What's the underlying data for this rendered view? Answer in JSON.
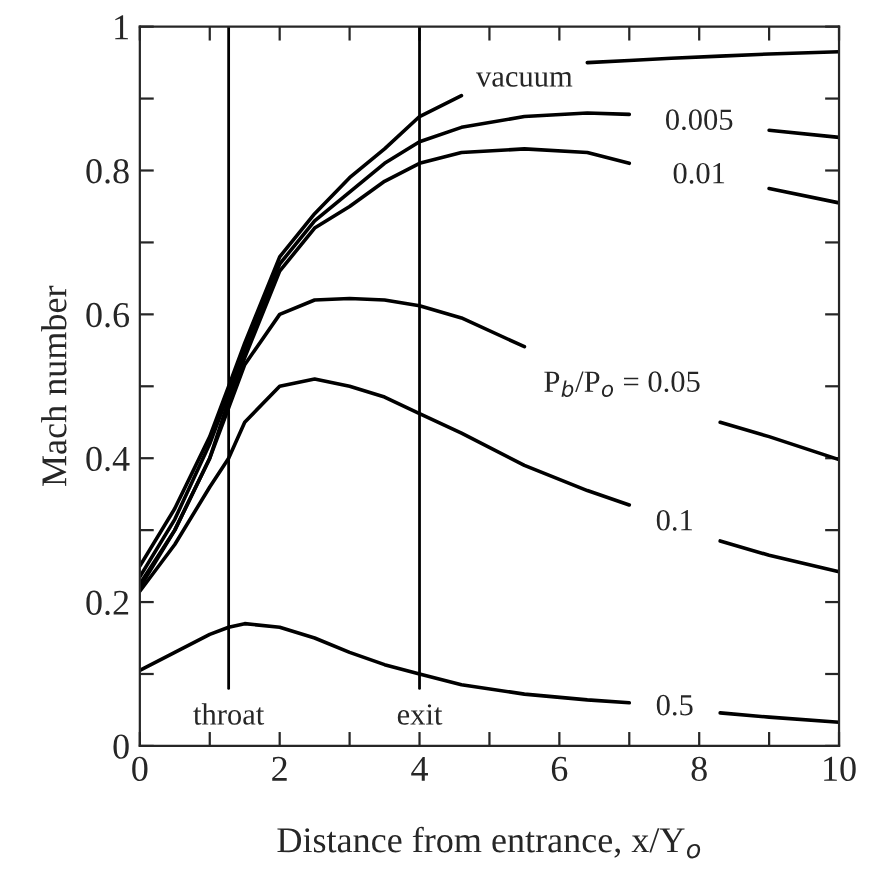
{
  "chart_data": {
    "type": "line",
    "xlabel": "Distance from entrance, x/Y$_{o}$",
    "ylabel": "Mach number",
    "x": [
      0,
      0.5,
      1,
      1.27,
      1.5,
      2,
      2.5,
      3,
      3.5,
      4,
      4.6,
      5.5,
      6.4,
      7,
      7.6,
      8.3,
      9,
      10
    ],
    "series": [
      {
        "name": "vacuum",
        "color": "#000000",
        "values": [
          0.25,
          0.33,
          0.43,
          0.5,
          0.56,
          0.68,
          0.74,
          0.79,
          0.83,
          0.875,
          0.904,
          null,
          0.95,
          0.953,
          0.956,
          0.959,
          0.962,
          0.965
        ]
      },
      {
        "name": "0.005",
        "color": "#000000",
        "values": [
          0.235,
          0.315,
          0.42,
          0.49,
          0.55,
          0.67,
          0.73,
          0.77,
          0.81,
          0.84,
          0.86,
          0.875,
          0.88,
          0.878,
          null,
          null,
          0.856,
          0.846
        ]
      },
      {
        "name": "0.01",
        "color": "#000000",
        "values": [
          0.22,
          0.3,
          0.4,
          0.48,
          0.54,
          0.66,
          0.72,
          0.75,
          0.785,
          0.81,
          0.825,
          0.83,
          0.825,
          0.81,
          null,
          null,
          0.775,
          0.755
        ]
      },
      {
        "name": "P$_{b}$/P$_{o}$ = 0.05",
        "color": "#000000",
        "values": [
          0.225,
          0.3,
          0.4,
          0.47,
          0.53,
          0.6,
          0.62,
          0.622,
          0.62,
          0.612,
          0.595,
          0.555,
          null,
          null,
          null,
          0.45,
          0.43,
          0.398
        ]
      },
      {
        "name": "0.1",
        "color": "#000000",
        "values": [
          0.215,
          0.28,
          0.36,
          0.4,
          0.45,
          0.5,
          0.51,
          0.5,
          0.485,
          0.462,
          0.435,
          0.39,
          0.355,
          0.335,
          null,
          0.285,
          0.265,
          0.242
        ]
      },
      {
        "name": "0.5",
        "color": "#000000",
        "values": [
          0.105,
          0.13,
          0.155,
          0.165,
          0.17,
          0.165,
          0.15,
          0.13,
          0.113,
          0.1,
          0.085,
          0.072,
          0.064,
          0.06,
          null,
          0.046,
          0.04,
          0.033
        ]
      }
    ],
    "xlim": [
      0,
      10
    ],
    "ylim": [
      0,
      1
    ],
    "xticks": [
      0,
      {
        "value": 1,
        "label": null
      },
      2,
      {
        "value": 3,
        "label": null
      },
      4,
      {
        "value": 5,
        "label": null
      },
      6,
      {
        "value": 7,
        "label": null
      },
      8,
      {
        "value": 9,
        "label": null
      },
      10
    ],
    "yticks": [
      0,
      {
        "value": 0.1,
        "label": null
      },
      0.2,
      {
        "value": 0.3,
        "label": null
      },
      0.4,
      {
        "value": 0.5,
        "label": null
      },
      0.6,
      {
        "value": 0.7,
        "label": null
      },
      0.8,
      {
        "value": 0.9,
        "label": null
      },
      1
    ],
    "ref_lines": [
      {
        "axis": "x",
        "value": 1.27,
        "label": "throat",
        "color": "#000000"
      },
      {
        "axis": "x",
        "value": 4,
        "label": "exit",
        "color": "#000000"
      }
    ],
    "grid": false,
    "marker": "none",
    "line_style": "solid"
  }
}
